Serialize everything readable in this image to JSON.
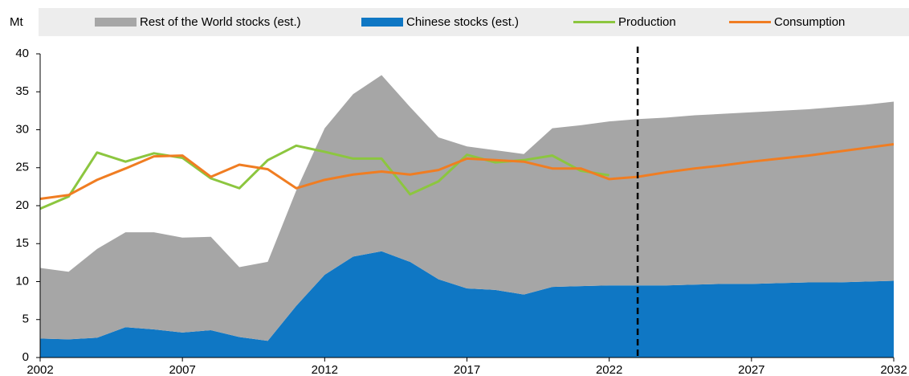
{
  "chart_data": {
    "type": "stacked_area_line",
    "y_label": "Mt",
    "x": [
      2002,
      2003,
      2004,
      2005,
      2006,
      2007,
      2008,
      2009,
      2010,
      2011,
      2012,
      2013,
      2014,
      2015,
      2016,
      2017,
      2018,
      2019,
      2020,
      2021,
      2022,
      2023,
      2024,
      2025,
      2026,
      2027,
      2028,
      2029,
      2030,
      2031,
      2032
    ],
    "series": [
      {
        "name": "Rest of the World stocks (est.)",
        "color": "#a6a6a6",
        "kind": "area",
        "values": [
          9.3,
          8.9,
          11.7,
          12.5,
          12.8,
          12.5,
          12.3,
          9.2,
          10.4,
          15.2,
          19.3,
          21.4,
          23.2,
          20.4,
          18.7,
          18.7,
          18.4,
          18.5,
          20.9,
          21.2,
          21.6,
          21.9,
          22.1,
          22.3,
          22.4,
          22.6,
          22.7,
          22.8,
          23.1,
          23.3,
          23.6
        ]
      },
      {
        "name": "Chinese stocks (est.)",
        "color": "#0f77c4",
        "kind": "area",
        "values": [
          2.5,
          2.4,
          2.6,
          4.0,
          3.7,
          3.3,
          3.6,
          2.7,
          2.2,
          6.8,
          10.9,
          13.3,
          14.0,
          12.6,
          10.3,
          9.1,
          8.9,
          8.3,
          9.3,
          9.4,
          9.5,
          9.5,
          9.5,
          9.6,
          9.7,
          9.7,
          9.8,
          9.9,
          9.9,
          10.0,
          10.1
        ]
      },
      {
        "name": "Production",
        "color": "#8cc63f",
        "kind": "line",
        "values": [
          19.6,
          21.2,
          27.0,
          25.8,
          26.9,
          26.3,
          23.6,
          22.3,
          26.0,
          27.9,
          27.1,
          26.2,
          26.2,
          21.5,
          23.2,
          26.7,
          25.7,
          26.0,
          26.6,
          24.6,
          24.0,
          null,
          null,
          null,
          null,
          null,
          null,
          null,
          null,
          null,
          null
        ]
      },
      {
        "name": "Consumption",
        "color": "#f07d22",
        "kind": "line",
        "values": [
          20.9,
          21.4,
          23.4,
          24.9,
          26.5,
          26.6,
          23.8,
          25.4,
          24.8,
          22.3,
          23.4,
          24.1,
          24.5,
          24.1,
          24.7,
          26.2,
          26.0,
          25.8,
          24.9,
          24.9,
          23.5,
          23.8,
          24.4,
          24.9,
          25.3,
          25.8,
          26.2,
          26.6,
          27.1,
          27.6,
          28.1
        ]
      }
    ],
    "stack_order": [
      1,
      0
    ],
    "xlim": [
      2002,
      2032
    ],
    "xticks": [
      2002,
      2007,
      2012,
      2017,
      2022,
      2027,
      2032
    ],
    "ylim": [
      0,
      40
    ],
    "yticks": [
      0,
      5,
      10,
      15,
      20,
      25,
      30,
      35,
      40
    ],
    "vline_x": 2023,
    "grid": false
  }
}
